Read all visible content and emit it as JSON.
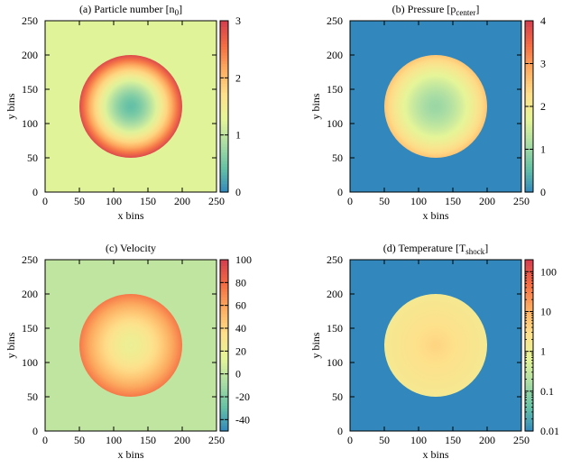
{
  "chart_data": [
    {
      "type": "heatmap",
      "title": "(a) Particle number [n",
      "title_sub": "0",
      "title_end": "]",
      "xlabel": "x bins",
      "ylabel": "y bins",
      "xlim": [
        0,
        250
      ],
      "ylim": [
        0,
        250
      ],
      "xticks": [
        "0",
        "50",
        "100",
        "150",
        "200",
        "250"
      ],
      "yticks": [
        "0",
        "50",
        "100",
        "150",
        "200",
        "250"
      ],
      "colorbar": {
        "min": 0,
        "max": 3,
        "scale": "linear",
        "ticks": [
          "0",
          "1",
          "2",
          "3"
        ]
      },
      "background_value": 1.25,
      "circle": {
        "center": [
          125,
          125
        ],
        "radius": 75,
        "center_value": 0.4,
        "rim_value": 2.9
      }
    },
    {
      "type": "heatmap",
      "title": "(b) Pressure [p",
      "title_sub": "center",
      "title_end": "]",
      "xlabel": "x bins",
      "ylabel": "y bins",
      "xlim": [
        0,
        250
      ],
      "ylim": [
        0,
        250
      ],
      "xticks": [
        "0",
        "50",
        "100",
        "150",
        "200",
        "250"
      ],
      "yticks": [
        "0",
        "50",
        "100",
        "150",
        "200",
        "250"
      ],
      "colorbar": {
        "min": 0,
        "max": 4,
        "scale": "linear",
        "ticks": [
          "0",
          "1",
          "2",
          "3",
          "4"
        ]
      },
      "background_value": 0.0,
      "circle": {
        "center": [
          125,
          125
        ],
        "radius": 75,
        "center_value": 1.0,
        "rim_value": 2.6
      }
    },
    {
      "type": "heatmap",
      "title": "(c) Velocity",
      "title_sub": "",
      "title_end": "",
      "xlabel": "x bins",
      "ylabel": "y bins",
      "xlim": [
        0,
        250
      ],
      "ylim": [
        0,
        250
      ],
      "xticks": [
        "0",
        "50",
        "100",
        "150",
        "200",
        "250"
      ],
      "yticks": [
        "0",
        "50",
        "100",
        "150",
        "200",
        "250"
      ],
      "colorbar": {
        "min": -50,
        "max": 100,
        "scale": "linear",
        "ticks": [
          "-40",
          "-20",
          "0",
          "20",
          "40",
          "60",
          "80",
          "100"
        ]
      },
      "background_value": 0,
      "circle": {
        "center": [
          125,
          125
        ],
        "radius": 75,
        "center_value": 20,
        "rim_value": 75
      }
    },
    {
      "type": "heatmap",
      "title": "(d) Temperature [T",
      "title_sub": "shock",
      "title_end": "]",
      "xlabel": "x bins",
      "ylabel": "y bins",
      "xlim": [
        0,
        250
      ],
      "ylim": [
        0,
        250
      ],
      "xticks": [
        "0",
        "50",
        "100",
        "150",
        "200",
        "250"
      ],
      "yticks": [
        "0",
        "50",
        "100",
        "150",
        "200",
        "250"
      ],
      "colorbar": {
        "min": 0.01,
        "max": 200,
        "scale": "log",
        "ticks": [
          "0.01",
          "0.1",
          "1",
          "10",
          "100"
        ]
      },
      "background_value": 0.01,
      "circle": {
        "center": [
          125,
          125
        ],
        "radius": 75,
        "center_value": 4.0,
        "rim_value": 1.6
      }
    }
  ],
  "colors": {
    "palette": [
      "#3288bd",
      "#66c2a5",
      "#abdda4",
      "#e6f598",
      "#fee08b",
      "#fdae61",
      "#f46d43",
      "#d53e4f"
    ]
  }
}
